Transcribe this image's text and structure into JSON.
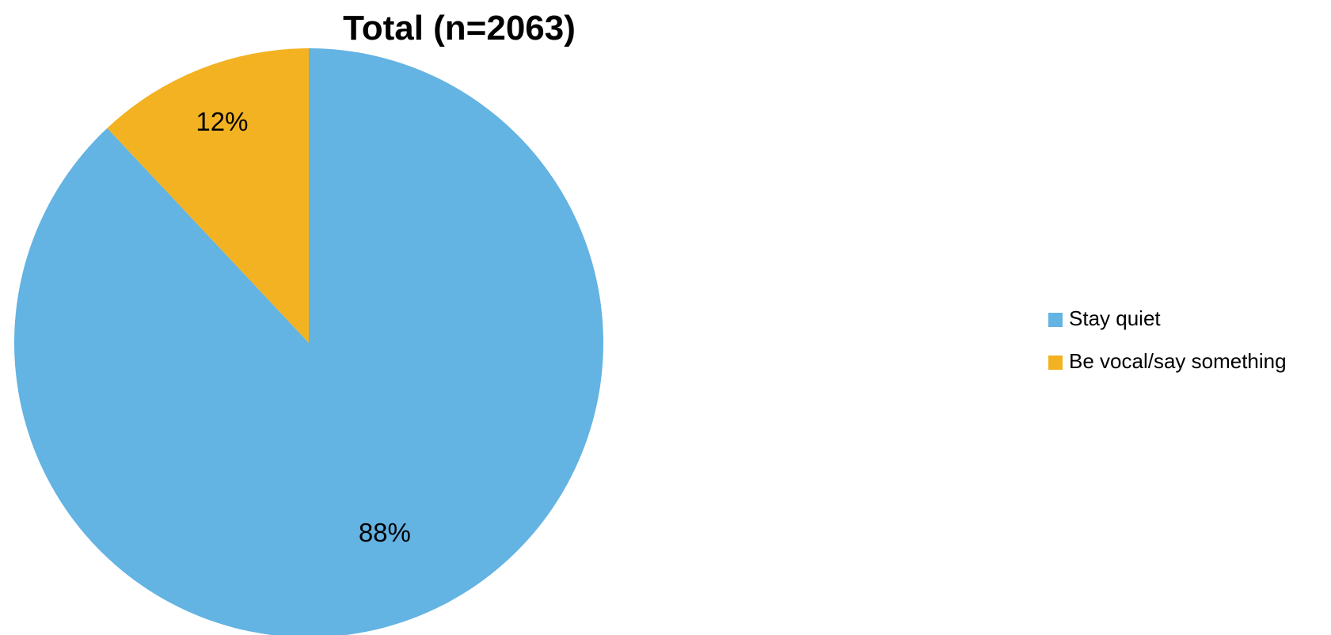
{
  "chart_data": {
    "type": "pie",
    "title": "Total (n=2063)",
    "slices": [
      {
        "label": "Stay quiet",
        "value": 88,
        "data_label": "88%",
        "color": "#63B3E3"
      },
      {
        "label": "Be vocal/say something",
        "value": 12,
        "data_label": "12%",
        "color": "#F2B221"
      }
    ],
    "start_angle_deg": 0,
    "direction": "clockwise",
    "legend_position": "right"
  }
}
